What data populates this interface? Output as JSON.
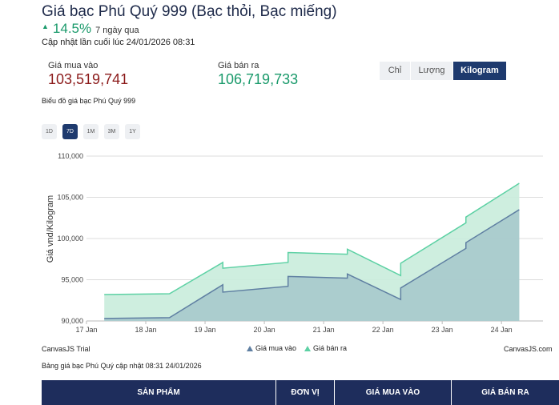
{
  "header": {
    "title": "Giá bạc Phú Quý 999 (Bạc thỏi, Bạc miếng)",
    "change_arrow": "▲",
    "change_pct": "14.5%",
    "change_period": "7 ngày qua",
    "updated": "Cập nhật lần cuối lúc 24/01/2026 08:31"
  },
  "prices": {
    "buy_label": "Giá mua vào",
    "buy_value": "103,519,741",
    "sell_label": "Giá bán ra",
    "sell_value": "106,719,733"
  },
  "unit_tabs": [
    "Chỉ",
    "Lượng",
    "Kilogram"
  ],
  "unit_active": "Kilogram",
  "chart_caption": "Biểu đồ giá bạc Phú Quý 999",
  "range_tabs": [
    "1D",
    "7D",
    "1M",
    "3M",
    "1Y"
  ],
  "range_active": "7D",
  "chart_data": {
    "type": "area",
    "step": true,
    "ylabel": "Giá vnd/Kilogram",
    "ylim": [
      90000,
      110000
    ],
    "yticks": [
      90000,
      95000,
      100000,
      105000,
      110000
    ],
    "ytick_labels": [
      "90,000",
      "95,000",
      "100,000",
      "105,000",
      "110,000"
    ],
    "xlim": [
      17,
      24.7
    ],
    "xticks": [
      17,
      18,
      19,
      20,
      21,
      22,
      23,
      24
    ],
    "xtick_labels": [
      "17 Jan",
      "18 Jan",
      "19 Jan",
      "20 Jan",
      "21 Jan",
      "22 Jan",
      "23 Jan",
      "24 Jan"
    ],
    "gridlines": true,
    "series": [
      {
        "name": "Giá mua vào",
        "color": "#5f7fa2",
        "fill": "#a7c9cc",
        "points": [
          [
            17.3,
            90300,
            90300
          ],
          [
            18.4,
            90400,
            90400
          ],
          [
            19.3,
            94400,
            93500
          ],
          [
            20.4,
            94200,
            95400
          ],
          [
            21.4,
            95200,
            95700
          ],
          [
            22.3,
            92600,
            94000
          ],
          [
            23.4,
            98800,
            99500
          ],
          [
            24.3,
            103500,
            103500
          ]
        ]
      },
      {
        "name": "Giá bán ra",
        "color": "#5dd1a4",
        "fill": "#c9ecdc",
        "points": [
          [
            17.3,
            93200,
            93200
          ],
          [
            18.4,
            93300,
            93300
          ],
          [
            19.3,
            97100,
            96400
          ],
          [
            20.4,
            97100,
            98300
          ],
          [
            21.4,
            98100,
            98700
          ],
          [
            22.3,
            95500,
            97000
          ],
          [
            23.4,
            101900,
            102600
          ],
          [
            24.3,
            106700,
            106700
          ]
        ]
      }
    ]
  },
  "canvas_trial": "CanvasJS Trial",
  "canvas_brand": "CanvasJS.com",
  "legend": [
    "Giá mua vào",
    "Giá bán ra"
  ],
  "table": {
    "caption": "Bảng giá bạc Phú Quý cập nhật 08:31 24/01/2026",
    "headers": [
      "SẢN PHẨM",
      "ĐƠN VỊ",
      "GIÁ MUA VÀO",
      "GIÁ BÁN RA"
    ]
  }
}
